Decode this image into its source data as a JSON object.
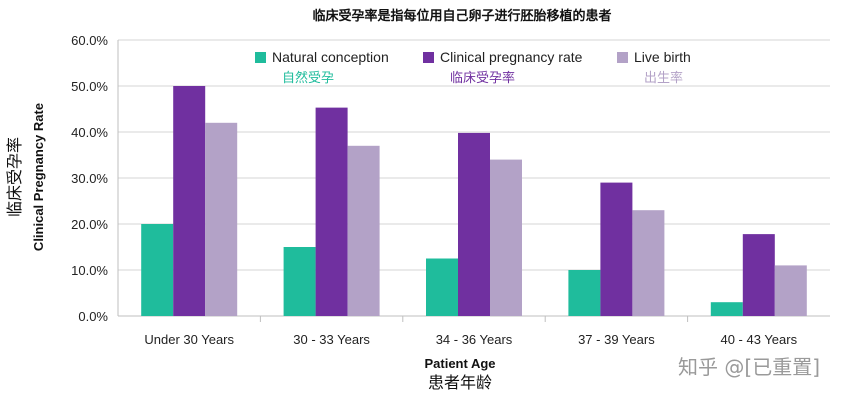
{
  "title": "临床受孕率是指每位用自己卵子进行胚胎移植的患者",
  "watermark": "知乎 @[已重置]",
  "chart_data": {
    "type": "bar",
    "categories": [
      "Under 30 Years",
      "30 - 33 Years",
      "34 - 36 Years",
      "37 - 39 Years",
      "40 - 43 Years"
    ],
    "series": [
      {
        "name": "Natural conception",
        "name_cn": "自然受孕",
        "color": "#1fbc9c",
        "values": [
          20.0,
          15.0,
          12.5,
          10.0,
          3.0
        ]
      },
      {
        "name": "Clinical pregnancy rate",
        "name_cn": "临床受孕率",
        "color": "#7030a0",
        "values": [
          50.0,
          45.3,
          39.8,
          29.0,
          17.8
        ]
      },
      {
        "name": "Live birth",
        "name_cn": "出生率",
        "color": "#b3a2c7",
        "values": [
          42.0,
          37.0,
          34.0,
          23.0,
          11.0
        ]
      }
    ],
    "ylim": [
      0,
      60
    ],
    "yticks": [
      "0.0%",
      "10.0%",
      "20.0%",
      "30.0%",
      "40.0%",
      "50.0%",
      "60.0%"
    ],
    "xlabel": "Patient Age",
    "xlabel_cn": "患者年龄",
    "ylabel": "Clinical Pregnancy Rate",
    "ylabel_cn": "临床受孕率",
    "grid": true,
    "legend_position": "top"
  }
}
